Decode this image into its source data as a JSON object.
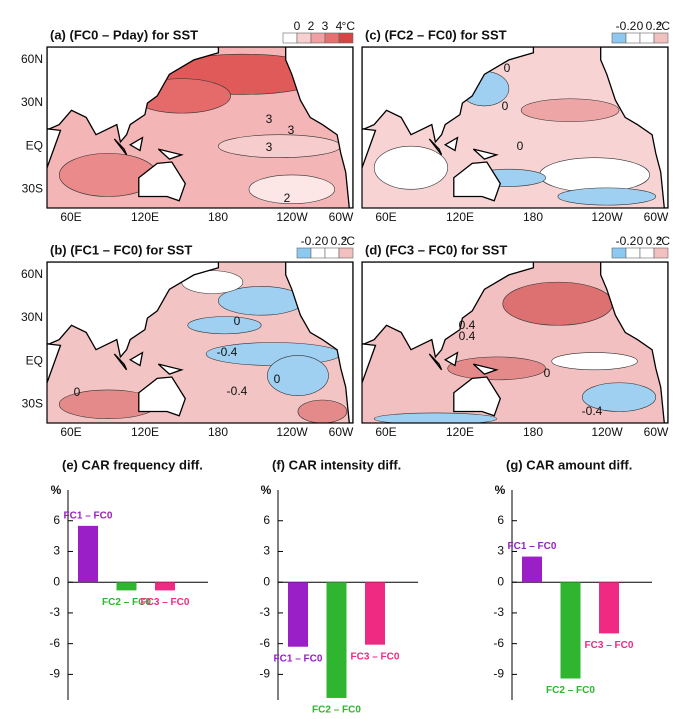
{
  "maps": {
    "lon_labels": [
      "60E",
      "120E",
      "180",
      "120W",
      "60W"
    ],
    "lat_labels": [
      "60N",
      "30N",
      "EQ",
      "30S"
    ],
    "panels": [
      {
        "title": "(a) (FC0 – Pday) for SST",
        "colorbar": [
          "0",
          "2",
          "3",
          "4"
        ],
        "unit": "°C",
        "contour_labels": [
          "3",
          "3",
          "3",
          "2"
        ]
      },
      {
        "title": "(b) (FC1 – FC0) for SST",
        "colorbar": [
          "-0.2",
          "0",
          "0.2"
        ],
        "unit": "°C",
        "contour_labels": [
          "0",
          "-0.4",
          "0",
          "-0.4",
          "0"
        ]
      },
      {
        "title": "(c) (FC2 – FC0) for SST",
        "colorbar": [
          "-0.2",
          "0",
          "0.2"
        ],
        "unit": "°C",
        "contour_labels": [
          "0",
          "0",
          "0"
        ]
      },
      {
        "title": "(d) (FC3 – FC0) for SST",
        "colorbar": [
          "-0.2",
          "0",
          "0.2"
        ],
        "unit": "°C",
        "contour_labels": [
          "0.4",
          "0.4",
          "0",
          "-0.4"
        ]
      }
    ]
  },
  "chart_data": [
    {
      "type": "bar",
      "title": "(e) CAR frequency diff.",
      "ylabel": "%",
      "categories": [
        "FC1 – FC0",
        "FC2 – FC0",
        "FC3 – FC0"
      ],
      "values": [
        5.5,
        -0.8,
        -0.8
      ],
      "colors": [
        "#9b1fc6",
        "#2fb52f",
        "#ef2a83"
      ],
      "ylim": [
        -11.5,
        9
      ],
      "yticks": [
        -9,
        -6,
        -3,
        0,
        3,
        6
      ]
    },
    {
      "type": "bar",
      "title": "(f) CAR intensity diff.",
      "ylabel": "%",
      "categories": [
        "FC1 – FC0",
        "FC2 – FC0",
        "FC3 – FC0"
      ],
      "values": [
        -6.3,
        -11.3,
        -6.1
      ],
      "colors": [
        "#9b1fc6",
        "#2fb52f",
        "#ef2a83"
      ],
      "ylim": [
        -11.5,
        9
      ],
      "yticks": [
        -9,
        -6,
        -3,
        0,
        3,
        6
      ]
    },
    {
      "type": "bar",
      "title": "(g) CAR amount diff.",
      "ylabel": "%",
      "categories": [
        "FC1 – FC0",
        "FC2 – FC0",
        "FC3 – FC0"
      ],
      "values": [
        2.5,
        -9.4,
        -5.0
      ],
      "colors": [
        "#9b1fc6",
        "#2fb52f",
        "#ef2a83"
      ],
      "ylim": [
        -11.5,
        9
      ],
      "yticks": [
        -9,
        -6,
        -3,
        0,
        3,
        6
      ]
    }
  ]
}
